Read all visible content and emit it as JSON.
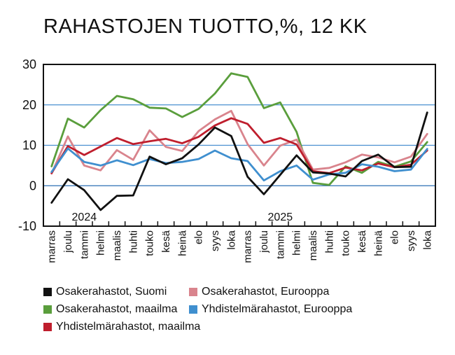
{
  "chart_data": {
    "type": "line",
    "title": "RAHASTOJEN TUOTTO,%, 12 KK",
    "xlabel": "",
    "ylabel": "",
    "ylim": [
      -10,
      30
    ],
    "yticks": [
      -10,
      0,
      10,
      20,
      30
    ],
    "grid": true,
    "legend_position": "bottom",
    "categories": [
      "marras",
      "joulu",
      "tammi",
      "helmi",
      "maalis",
      "huhti",
      "touko",
      "kesä",
      "heinä",
      "elo",
      "syys",
      "loka",
      "marras",
      "joulu",
      "tammi",
      "helmi",
      "maalis",
      "huhti",
      "touko",
      "kesä",
      "heinä",
      "elo",
      "syys",
      "loka"
    ],
    "year_labels": [
      {
        "label": "2024",
        "category_index": 2
      },
      {
        "label": "2025",
        "category_index": 14
      }
    ],
    "series": [
      {
        "name": "Osakerahastot, Suomi",
        "color": "#111111",
        "values": [
          -4.2,
          1.6,
          -1.1,
          -6.0,
          -2.5,
          -2.4,
          7.2,
          5.3,
          6.8,
          10.2,
          14.4,
          12.3,
          2.2,
          -2.1,
          2.7,
          7.5,
          3.3,
          3.0,
          2.3,
          6.1,
          7.7,
          4.6,
          4.7,
          18.1
        ]
      },
      {
        "name": "Osakerahastot, Eurooppa",
        "color": "#d9848d",
        "values": [
          3.0,
          12.2,
          5.0,
          3.8,
          8.8,
          6.4,
          13.7,
          9.6,
          8.6,
          13.5,
          16.4,
          18.5,
          10.3,
          5.0,
          9.9,
          11.4,
          4.0,
          4.4,
          5.8,
          7.7,
          7.0,
          5.8,
          7.2,
          12.8
        ]
      },
      {
        "name": "Osakerahastot, maailma",
        "color": "#5a9e3c",
        "values": [
          4.8,
          16.6,
          14.4,
          18.7,
          22.2,
          21.4,
          19.3,
          19.1,
          17.0,
          19.0,
          22.8,
          27.8,
          26.9,
          19.2,
          20.6,
          13.3,
          0.7,
          0.2,
          4.8,
          3.2,
          5.9,
          4.7,
          6.0,
          10.8
        ]
      },
      {
        "name": "Yhdistelmärahastot, Eurooppa",
        "color": "#3f8fcf",
        "values": [
          3.4,
          9.2,
          5.9,
          5.0,
          6.3,
          5.1,
          6.6,
          5.6,
          5.9,
          6.6,
          8.7,
          6.8,
          6.1,
          1.3,
          3.6,
          5.0,
          1.5,
          2.8,
          3.2,
          5.3,
          4.7,
          3.6,
          4.0,
          9.1
        ]
      },
      {
        "name": "Yhdistelmärahastot, maailma",
        "color": "#bf1e2d",
        "values": [
          3.1,
          9.8,
          7.6,
          9.7,
          11.8,
          10.3,
          11.0,
          11.6,
          10.5,
          12.1,
          14.9,
          16.7,
          15.3,
          10.6,
          11.8,
          10.2,
          3.6,
          3.1,
          4.5,
          3.8,
          5.5,
          4.6,
          5.2,
          8.7
        ]
      }
    ]
  }
}
